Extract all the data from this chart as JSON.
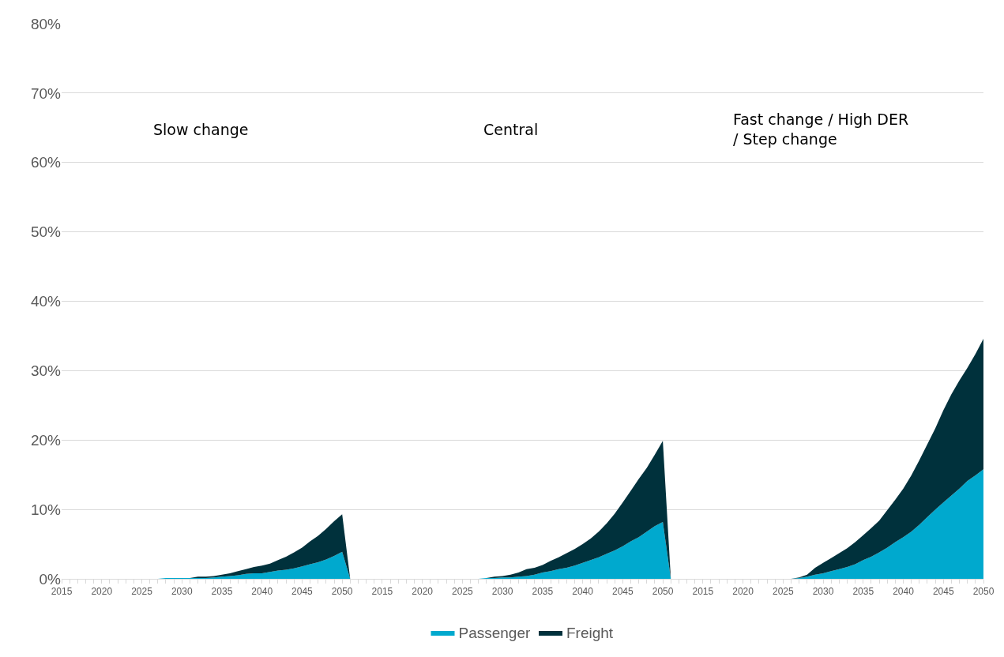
{
  "chart_data": {
    "type": "area",
    "stacked": true,
    "categories": [
      "2015",
      null,
      null,
      null,
      null,
      "2020",
      null,
      null,
      null,
      null,
      "2025",
      null,
      null,
      null,
      null,
      "2030",
      null,
      null,
      null,
      null,
      "2035",
      null,
      null,
      null,
      null,
      "2040",
      null,
      null,
      null,
      null,
      "2045",
      null,
      null,
      null,
      null,
      "2050",
      null,
      null,
      null,
      null,
      "2015",
      null,
      null,
      null,
      null,
      "2020",
      null,
      null,
      null,
      null,
      "2025",
      null,
      null,
      null,
      null,
      "2030",
      null,
      null,
      null,
      null,
      "2035",
      null,
      null,
      null,
      null,
      "2040",
      null,
      null,
      null,
      null,
      "2045",
      null,
      null,
      null,
      null,
      "2050",
      null,
      null,
      null,
      null,
      "2015",
      null,
      null,
      null,
      null,
      "2020",
      null,
      null,
      null,
      null,
      "2025",
      null,
      null,
      null,
      null,
      "2030",
      null,
      null,
      null,
      null,
      "2035",
      null,
      null,
      null,
      null,
      "2040",
      null,
      null,
      null,
      null,
      "2045",
      null,
      null,
      null,
      null,
      "2050"
    ],
    "series": [
      {
        "name": "Passenger",
        "color": "#00a9ce",
        "values": [
          0,
          0,
          0,
          0,
          0,
          0,
          0,
          0,
          0,
          0,
          0,
          0,
          0,
          0.1,
          0.1,
          0.1,
          0.1,
          0.1,
          0.1,
          0.2,
          0.3,
          0.4,
          0.5,
          0.7,
          0.8,
          0.8,
          1.0,
          1.2,
          1.3,
          1.5,
          1.8,
          2.1,
          2.4,
          2.8,
          3.3,
          3.9,
          0,
          0,
          0,
          0,
          0,
          0,
          0,
          0,
          0,
          0,
          0,
          0,
          0,
          0,
          0,
          0,
          0,
          0.1,
          0.1,
          0.2,
          0.2,
          0.3,
          0.4,
          0.6,
          0.9,
          1.1,
          1.4,
          1.6,
          1.9,
          2.3,
          2.7,
          3.1,
          3.6,
          4.1,
          4.7,
          5.4,
          6.0,
          6.8,
          7.6,
          8.2,
          0,
          0,
          0,
          0,
          0,
          0,
          0,
          0,
          0,
          0,
          0,
          0,
          0,
          0,
          0,
          0,
          0.1,
          0.3,
          0.6,
          0.8,
          1.1,
          1.4,
          1.7,
          2.1,
          2.7,
          3.2,
          3.8,
          4.5,
          5.3,
          6.0,
          6.8,
          7.8,
          8.9,
          10.0,
          11.0,
          12.0,
          13.0,
          14.1,
          14.9,
          15.8
        ]
      },
      {
        "name": "Freight",
        "color": "#00313c",
        "values": [
          0,
          0,
          0,
          0,
          0,
          0,
          0,
          0,
          0,
          0,
          0,
          0,
          0,
          0,
          0,
          0,
          0,
          0.2,
          0.2,
          0.2,
          0.3,
          0.4,
          0.6,
          0.7,
          0.9,
          1.1,
          1.2,
          1.5,
          1.9,
          2.3,
          2.7,
          3.3,
          3.8,
          4.4,
          5.0,
          5.4,
          0,
          0,
          0,
          0,
          0,
          0,
          0,
          0,
          0,
          0,
          0,
          0,
          0,
          0,
          0,
          0,
          0,
          0,
          0.2,
          0.2,
          0.4,
          0.6,
          1.0,
          1.0,
          1.1,
          1.5,
          1.7,
          2.1,
          2.4,
          2.7,
          3.1,
          3.7,
          4.4,
          5.3,
          6.3,
          7.3,
          8.4,
          9.2,
          10.3,
          11.7,
          0,
          0,
          0,
          0,
          0,
          0,
          0,
          0,
          0,
          0,
          0,
          0,
          0,
          0,
          0,
          0,
          0.1,
          0.3,
          1.0,
          1.5,
          1.9,
          2.3,
          2.7,
          3.2,
          3.6,
          4.1,
          4.6,
          5.4,
          6.1,
          7.0,
          8.1,
          9.3,
          10.5,
          11.7,
          13.3,
          14.6,
          15.6,
          16.3,
          17.5,
          18.8
        ]
      }
    ],
    "ylim": [
      0,
      80
    ],
    "yticks": [
      {
        "value": 0,
        "label": "0%"
      },
      {
        "value": 10,
        "label": "10%"
      },
      {
        "value": 20,
        "label": "20%"
      },
      {
        "value": 30,
        "label": "30%"
      },
      {
        "value": 40,
        "label": "40%"
      },
      {
        "value": 50,
        "label": "50%"
      },
      {
        "value": 60,
        "label": "60%"
      },
      {
        "value": 70,
        "label": "70%"
      },
      {
        "value": 80,
        "label": "80%"
      }
    ],
    "grid": "y",
    "legend": "bottom",
    "annotations": [
      "Slow change",
      "Central",
      "Fast change / High DER / Step change"
    ]
  }
}
